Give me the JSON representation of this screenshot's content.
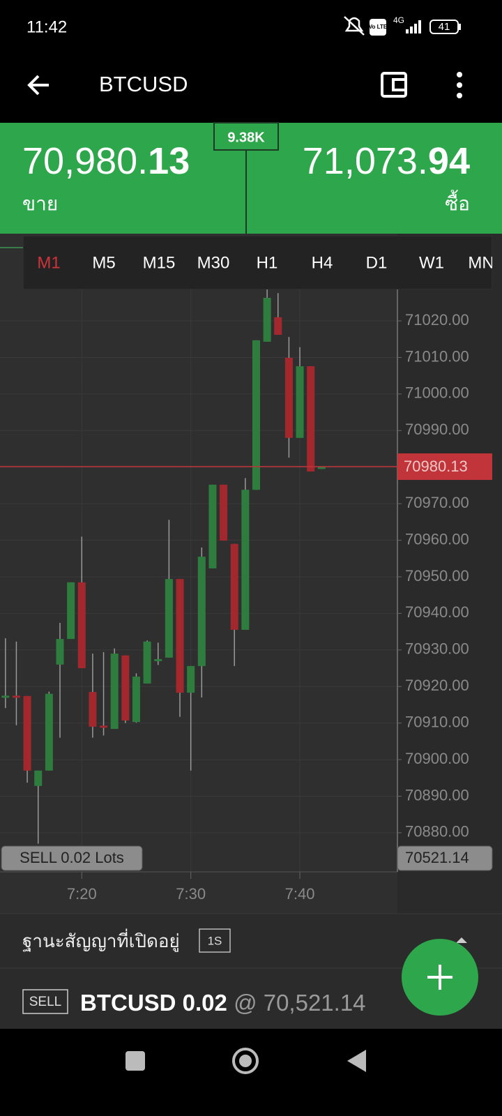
{
  "status_bar": {
    "time": "11:42",
    "volte": "Vo LTE",
    "network": "4G",
    "battery": "41"
  },
  "header": {
    "title": "BTCUSD"
  },
  "quote": {
    "spread": "9.38K",
    "bid": {
      "main": "70,980.",
      "big": "13",
      "label": "ขาย"
    },
    "ask": {
      "main": "71,073.",
      "big": "94",
      "label": "ซื้อ"
    }
  },
  "timeframes": {
    "items": [
      "M1",
      "M5",
      "M15",
      "M30",
      "H1",
      "H4",
      "D1",
      "W1",
      "MN"
    ],
    "selected": "M1"
  },
  "chart_data": {
    "type": "candlestick",
    "x": [
      13,
      14,
      15,
      16,
      17,
      18,
      19,
      20,
      21,
      22,
      23,
      24,
      25,
      26,
      27,
      28,
      29,
      30,
      31,
      32,
      33,
      34,
      35,
      36,
      37,
      38,
      39,
      40,
      41,
      42
    ],
    "open": [
      70917,
      70917.5,
      70917.4,
      70892.8,
      70897,
      70926,
      70933,
      70948.5,
      70918.5,
      70909.3,
      70908.4,
      70928.5,
      70910.3,
      70920.8,
      70927,
      70927.9,
      70949.4,
      70918.3,
      70925.6,
      70952.3,
      70975.2,
      70959,
      70935.5,
      70973.8,
      71014.3,
      71021,
      71009.9,
      70988,
      71007.6,
      70979.5
    ],
    "high": [
      70933.2,
      70932.3,
      70917.4,
      70897,
      70918.6,
      70937.4,
      70948.5,
      70961,
      70929,
      70929.4,
      70930.4,
      70928.5,
      70923.6,
      70932.6,
      70932,
      70965.6,
      70949.4,
      70925.6,
      70958,
      70975.2,
      70975.2,
      70959,
      70977,
      71014.7,
      71028.6,
      71027.6,
      71015.6,
      71012.8,
      71007.6,
      70980.13
    ],
    "low": [
      70914.1,
      70909.4,
      70893.7,
      70877,
      70897,
      70906,
      70933,
      70925,
      70906,
      70906.6,
      70908.4,
      70910,
      70910.1,
      70920.8,
      70925.9,
      70927.9,
      70911.7,
      70897,
      70917,
      70952.3,
      70959.9,
      70925.6,
      70935.5,
      70973.8,
      71014.3,
      71016.2,
      70982.6,
      70988,
      70978.8,
      70979.5
    ],
    "close": [
      70917.5,
      70917,
      70897,
      70897,
      70918,
      70933,
      70948.5,
      70925,
      70909,
      70909,
      70929,
      70910.7,
      70922.7,
      70932.3,
      70927.5,
      70949.4,
      70918.3,
      70925.6,
      70955.5,
      70975.2,
      70959.9,
      70935.5,
      70973.8,
      71014.7,
      71026.3,
      71016.2,
      70988,
      71007.6,
      70978.8,
      70980.13
    ],
    "up_color": "#2e7d3e",
    "down_color": "#a3282e",
    "ylim": [
      70869.3,
      71042.9
    ],
    "yticks": [
      {
        "value": 70880,
        "label": "70880.00"
      },
      {
        "value": 70890,
        "label": "70890.00"
      },
      {
        "value": 70900,
        "label": "70900.00"
      },
      {
        "value": 70910,
        "label": "70910.00"
      },
      {
        "value": 70920,
        "label": "70920.00"
      },
      {
        "value": 70930,
        "label": "70930.00"
      },
      {
        "value": 70940,
        "label": "70940.00"
      },
      {
        "value": 70950,
        "label": "70950.00"
      },
      {
        "value": 70960,
        "label": "70960.00"
      },
      {
        "value": 70970,
        "label": "70970.00"
      },
      {
        "value": 70980,
        "label": "70980.00"
      },
      {
        "value": 70990,
        "label": "70990.00"
      },
      {
        "value": 71000,
        "label": "71000.00"
      },
      {
        "value": 71010,
        "label": "71010.00"
      },
      {
        "value": 71020,
        "label": "71020.00"
      }
    ],
    "xlim": [
      12.5,
      48.95
    ],
    "xticks": [
      {
        "value": 20,
        "label": "7:20"
      },
      {
        "value": 30,
        "label": "7:30"
      },
      {
        "value": 40,
        "label": "7:40"
      }
    ],
    "grid": true,
    "last_price": 70980.13,
    "last_price_color": "#c0343a",
    "position": {
      "label": "SELL 0.02 Lots",
      "price": 70521.14
    }
  },
  "positions": {
    "title": "ฐานะสัญญาที่เปิดอยู่",
    "badge": "1S",
    "rows": [
      {
        "side": "SELL",
        "symbol": "BTCUSD 0.02",
        "price": "@ 70,521.14"
      }
    ]
  }
}
